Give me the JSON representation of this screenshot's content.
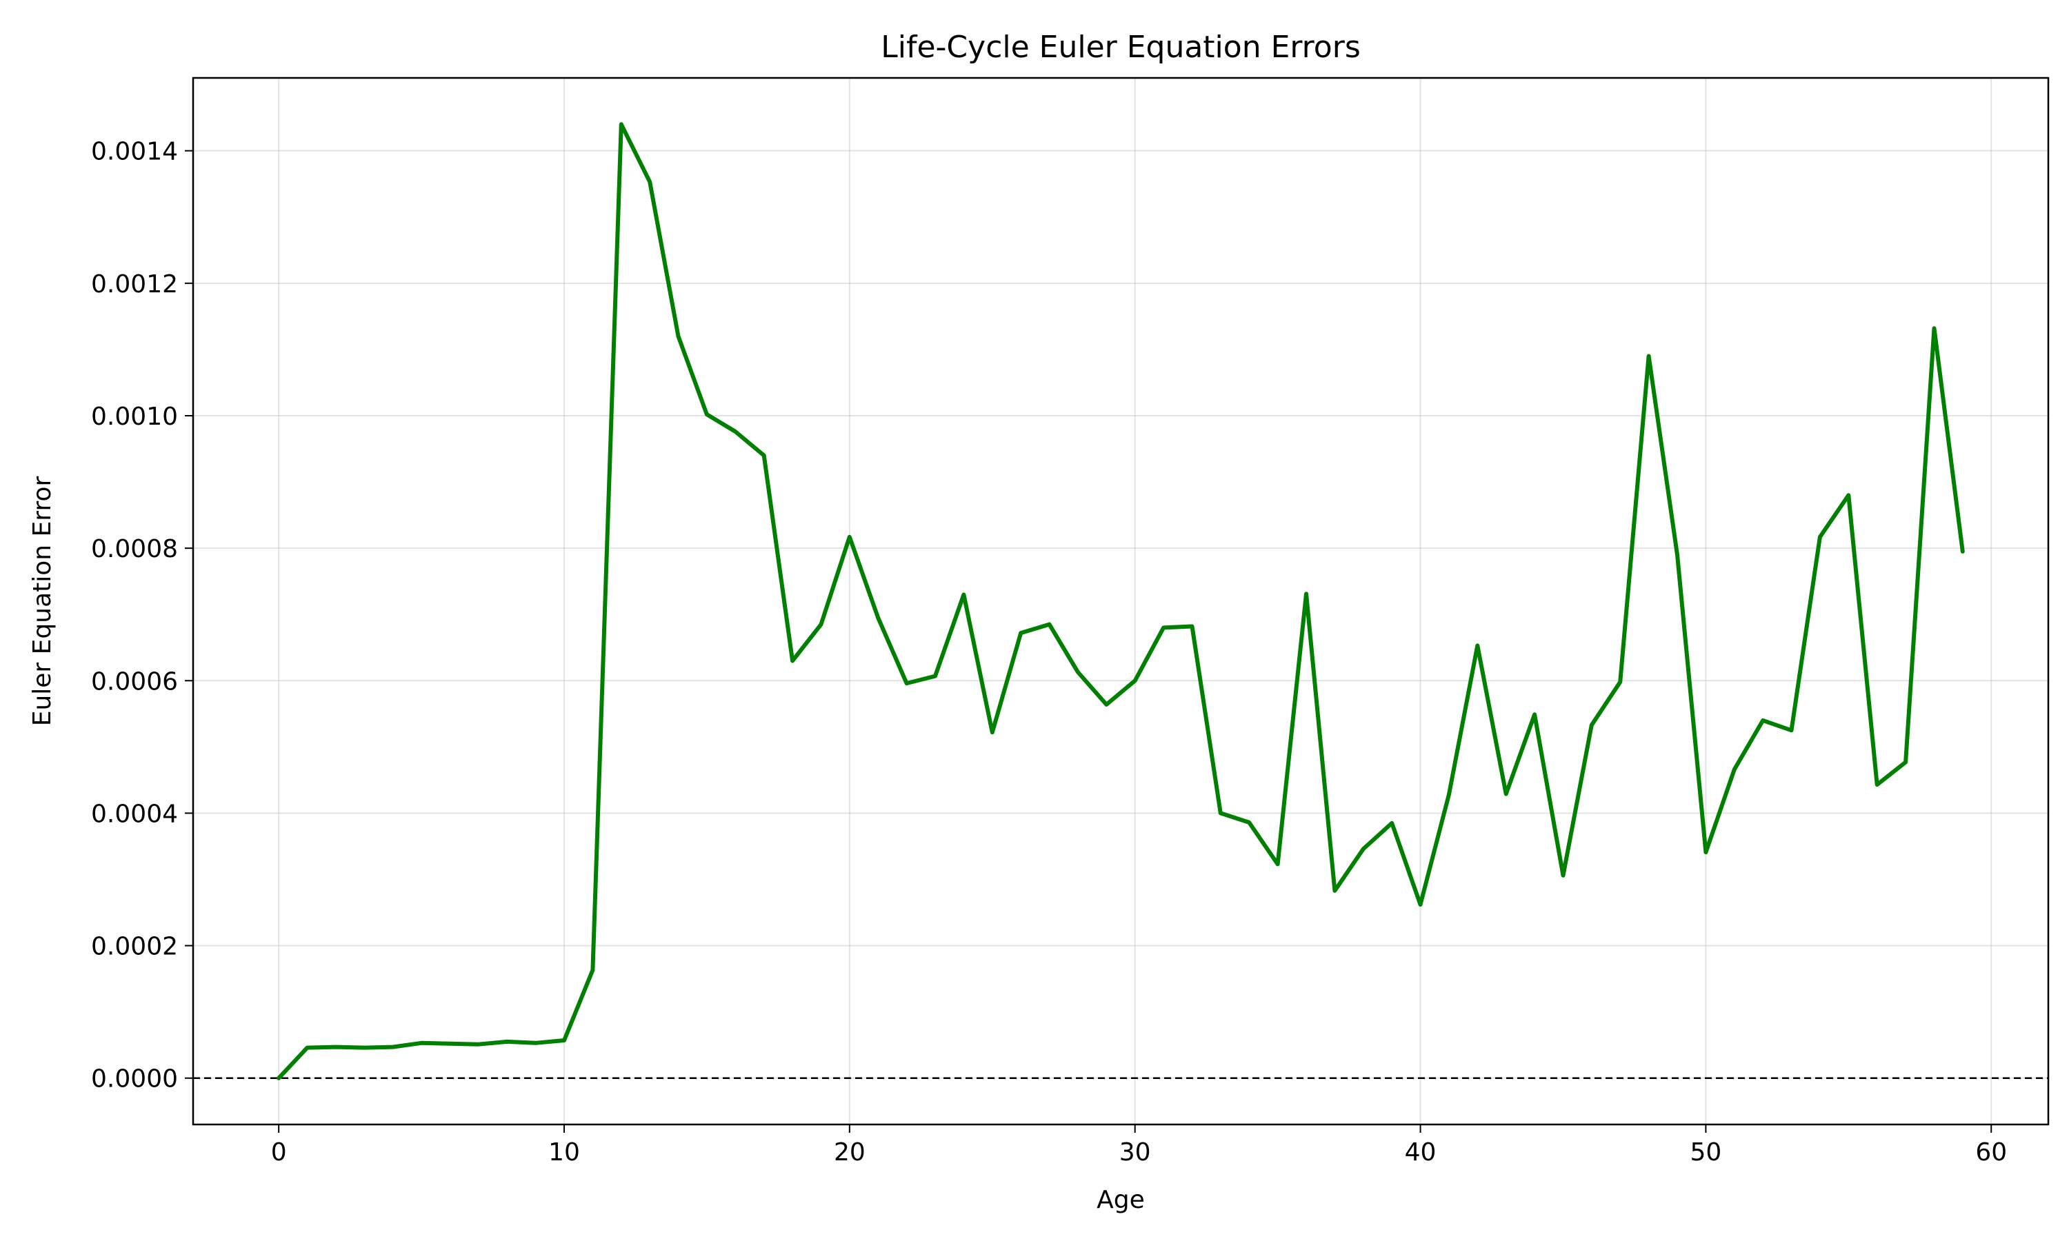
{
  "chart_data": {
    "type": "line",
    "title": "Life-Cycle Euler Equation Errors",
    "xlabel": "Age",
    "ylabel": "Euler Equation Error",
    "xlim": [
      -3,
      62
    ],
    "ylim": [
      -7e-05,
      0.00151
    ],
    "x_ticks": [
      0,
      10,
      20,
      30,
      40,
      50,
      60
    ],
    "x_tick_labels": [
      "0",
      "10",
      "20",
      "30",
      "40",
      "50",
      "60"
    ],
    "y_ticks": [
      0.0,
      0.0002,
      0.0004,
      0.0006,
      0.0008,
      0.001,
      0.0012,
      0.0014
    ],
    "y_tick_labels": [
      "0.0000",
      "0.0002",
      "0.0004",
      "0.0006",
      "0.0008",
      "0.0010",
      "0.0012",
      "0.0014"
    ],
    "grid": true,
    "reference_line": {
      "y": 0,
      "style": "dashed",
      "color": "#000000"
    },
    "series": [
      {
        "color": "#008000",
        "x": [
          0,
          1,
          2,
          3,
          4,
          5,
          6,
          7,
          8,
          9,
          10,
          11,
          12,
          13,
          14,
          15,
          16,
          17,
          18,
          19,
          20,
          21,
          22,
          23,
          24,
          25,
          26,
          27,
          28,
          29,
          30,
          31,
          32,
          33,
          34,
          35,
          36,
          37,
          38,
          39,
          40,
          41,
          42,
          43,
          44,
          45,
          46,
          47,
          48,
          49,
          50,
          51,
          52,
          53,
          54,
          55,
          56,
          57,
          58,
          59
        ],
        "values": [
          0.0,
          4.6e-05,
          4.7e-05,
          4.6e-05,
          4.7e-05,
          5.3e-05,
          5.2e-05,
          5.1e-05,
          5.5e-05,
          5.3e-05,
          5.7e-05,
          0.000163,
          0.00144,
          0.001353,
          0.00112,
          0.001002,
          0.000976,
          0.00094,
          0.00063,
          0.000685,
          0.000817,
          0.000695,
          0.000596,
          0.000607,
          0.00073,
          0.000522,
          0.000672,
          0.000685,
          0.000613,
          0.000564,
          0.0006,
          0.00068,
          0.000682,
          0.0004,
          0.000386,
          0.000323,
          0.000731,
          0.000283,
          0.000346,
          0.000385,
          0.000262,
          0.000428,
          0.000653,
          0.000429,
          0.000549,
          0.000306,
          0.000533,
          0.000598,
          0.00109,
          0.00079,
          0.000341,
          0.000466,
          0.00054,
          0.000525,
          0.000817,
          0.00088,
          0.000443,
          0.000477,
          0.001132,
          0.000795
        ]
      }
    ]
  }
}
